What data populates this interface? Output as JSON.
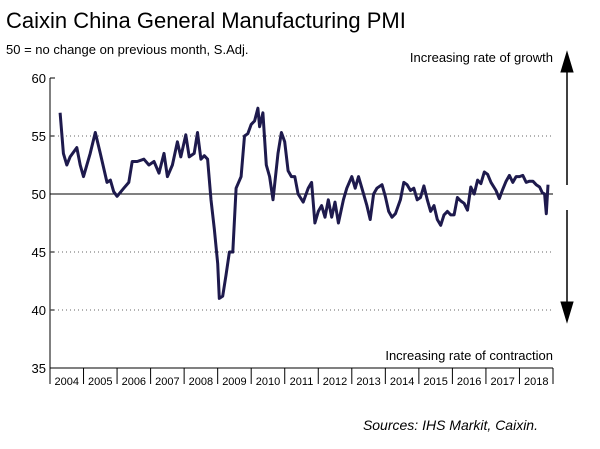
{
  "chart_data": {
    "type": "line",
    "title": "Caixin China General Manufacturing PMI",
    "subtitle": "50 = no change on previous month, S.Adj.",
    "annotation_top": "Increasing rate of growth",
    "annotation_bottom": "Increasing rate of contraction",
    "source": "Sources: IHS Markit, Caixin.",
    "x_labels": [
      "2004",
      "2005",
      "2006",
      "2007",
      "2008",
      "2009",
      "2010",
      "2011",
      "2012",
      "2013",
      "2014",
      "2015",
      "2016",
      "2017",
      "2018"
    ],
    "xlim": [
      2004,
      2019
    ],
    "ylim": [
      35,
      60
    ],
    "yticks": [
      35,
      40,
      45,
      50,
      55,
      60
    ],
    "reference": 50,
    "grid": true,
    "series": [
      {
        "name": "PMI",
        "color": "#1e1a4d",
        "x": [
          2004.3,
          2004.4,
          2004.5,
          2004.6,
          2004.8,
          2004.9,
          2005.0,
          2005.2,
          2005.35,
          2005.5,
          2005.7,
          2005.8,
          2005.9,
          2006.0,
          2006.2,
          2006.35,
          2006.45,
          2006.6,
          2006.8,
          2006.95,
          2007.1,
          2007.25,
          2007.4,
          2007.5,
          2007.65,
          2007.8,
          2007.9,
          2008.05,
          2008.15,
          2008.3,
          2008.4,
          2008.5,
          2008.6,
          2008.7,
          2008.8,
          2008.9,
          2009.0,
          2009.05,
          2009.15,
          2009.25,
          2009.35,
          2009.45,
          2009.55,
          2009.7,
          2009.8,
          2009.9,
          2010.0,
          2010.1,
          2010.2,
          2010.25,
          2010.35,
          2010.45,
          2010.55,
          2010.65,
          2010.8,
          2010.9,
          2011.0,
          2011.1,
          2011.2,
          2011.3,
          2011.4,
          2011.55,
          2011.7,
          2011.8,
          2011.9,
          2012.0,
          2012.1,
          2012.2,
          2012.3,
          2012.4,
          2012.5,
          2012.6,
          2012.75,
          2012.85,
          2013.0,
          2013.1,
          2013.2,
          2013.3,
          2013.45,
          2013.55,
          2013.65,
          2013.75,
          2013.9,
          2014.0,
          2014.1,
          2014.2,
          2014.3,
          2014.45,
          2014.55,
          2014.65,
          2014.75,
          2014.85,
          2014.95,
          2015.05,
          2015.15,
          2015.25,
          2015.35,
          2015.45,
          2015.55,
          2015.65,
          2015.75,
          2015.85,
          2015.95,
          2016.05,
          2016.15,
          2016.25,
          2016.35,
          2016.45,
          2016.55,
          2016.65,
          2016.75,
          2016.85,
          2016.95,
          2017.05,
          2017.15,
          2017.3,
          2017.4,
          2017.5,
          2017.6,
          2017.7,
          2017.8,
          2017.9,
          2018.0,
          2018.1,
          2018.2,
          2018.3,
          2018.4,
          2018.5,
          2018.6,
          2018.68,
          2018.75,
          2018.8,
          2018.85
        ],
        "values": [
          57,
          53.5,
          52.5,
          53.2,
          54,
          52.5,
          51.5,
          53.5,
          55.3,
          53.5,
          51,
          51.2,
          50.2,
          49.8,
          50.5,
          51,
          52.8,
          52.8,
          53,
          52.5,
          52.8,
          51.8,
          53.5,
          51.5,
          52.5,
          54.5,
          53.2,
          55.1,
          53.2,
          53.5,
          55.3,
          53,
          53.3,
          53,
          49.5,
          47,
          44,
          41,
          41.2,
          43,
          45,
          45,
          50.5,
          51.5,
          55,
          55.2,
          56,
          56.3,
          57.4,
          55.8,
          57,
          52.5,
          51.5,
          49.5,
          53.5,
          55.3,
          54.5,
          52,
          51.5,
          51.5,
          50,
          49.3,
          50.5,
          51,
          47.5,
          48.5,
          49,
          48,
          49.5,
          48,
          49.3,
          47.5,
          49.5,
          50.5,
          51.5,
          50.5,
          51.5,
          50.5,
          49,
          47.8,
          50,
          50.5,
          50.8,
          49.8,
          48.5,
          48,
          48.3,
          49.5,
          51,
          50.8,
          50.3,
          50.5,
          49.5,
          49.7,
          50.7,
          49.5,
          48.5,
          49,
          47.8,
          47.3,
          48.2,
          48.5,
          48.2,
          48.2,
          49.7,
          49.4,
          49.2,
          48.6,
          50.6,
          50,
          51.2,
          50.9,
          51.9,
          51.7,
          51,
          50.3,
          49.6,
          50.4,
          51.1,
          51.6,
          51,
          51.5,
          51.5,
          51.6,
          51,
          51.1,
          51.1,
          50.8,
          50.6,
          50.1,
          50,
          48.3,
          50.8
        ]
      }
    ]
  }
}
